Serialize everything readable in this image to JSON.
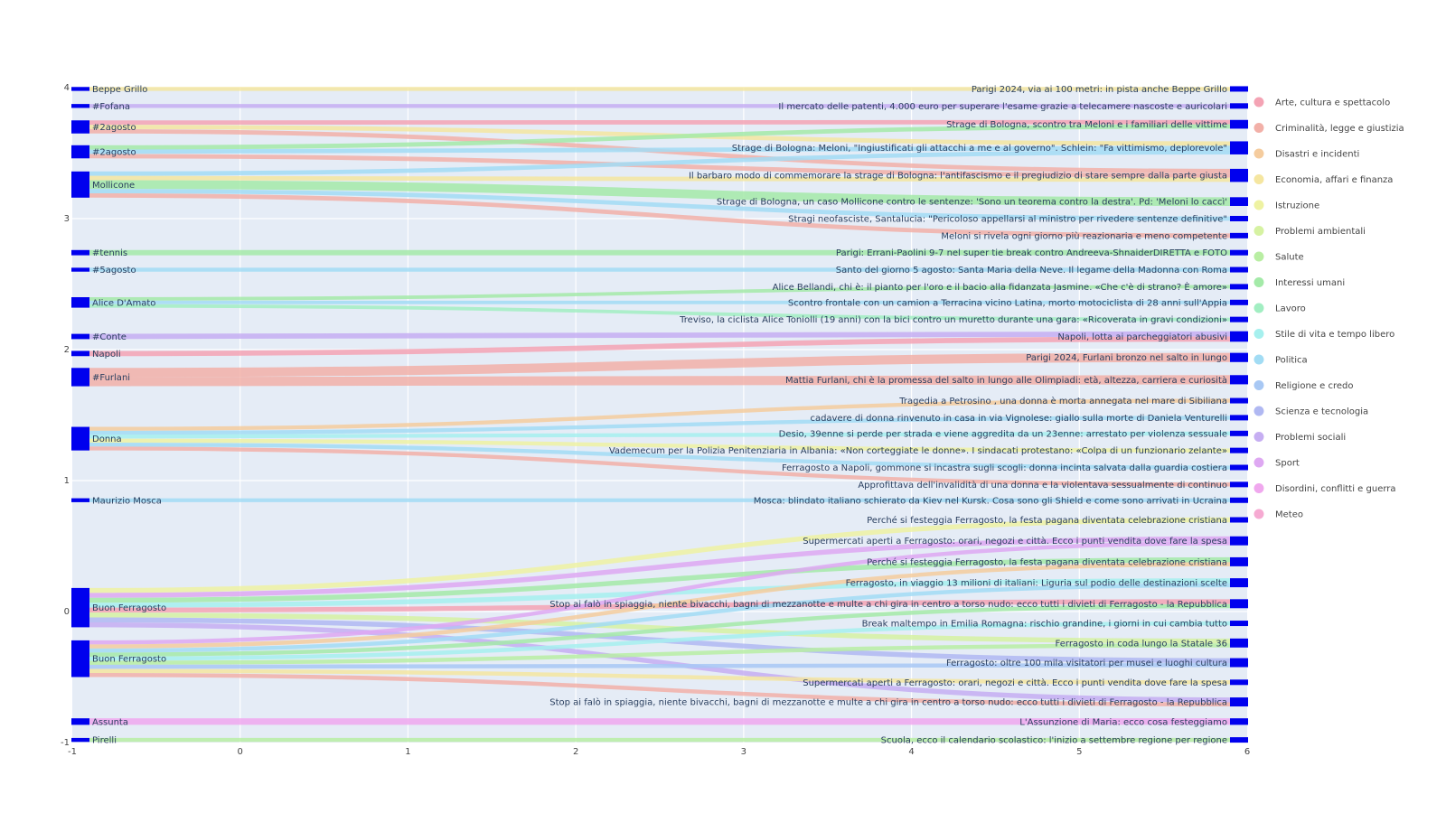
{
  "chart_data": {
    "type": "sankey",
    "xlim": [
      -1,
      6
    ],
    "ylim": [
      -1,
      4
    ],
    "x_ticks": [
      "-1",
      "0",
      "1",
      "2",
      "3",
      "4",
      "5",
      "6"
    ],
    "y_ticks": [
      "-1",
      "0",
      "1",
      "2",
      "3",
      "4"
    ],
    "grid": true,
    "legend_position": "right",
    "categories": [
      {
        "name": "Arte, cultura e spettacolo",
        "color": "#f4a3b4"
      },
      {
        "name": "Criminalità, legge e giustizia",
        "color": "#f2b0a8"
      },
      {
        "name": "Disastri e incidenti",
        "color": "#f5cc9e"
      },
      {
        "name": "Economia, affari e finanza",
        "color": "#f5e6a0"
      },
      {
        "name": "Istruzione",
        "color": "#eef2a2"
      },
      {
        "name": "Problemi ambientali",
        "color": "#d6f2a2"
      },
      {
        "name": "Salute",
        "color": "#b9eea3"
      },
      {
        "name": "Interessi umani",
        "color": "#a4eaa8"
      },
      {
        "name": "Lavoro",
        "color": "#a2eec2"
      },
      {
        "name": "Stile di vita e tempo libero",
        "color": "#a6f0ee"
      },
      {
        "name": "Politica",
        "color": "#a2dcf4"
      },
      {
        "name": "Religione e credo",
        "color": "#a8c8f4"
      },
      {
        "name": "Scienza e tecnologia",
        "color": "#b0b8f2"
      },
      {
        "name": "Problemi sociali",
        "color": "#c6aef2"
      },
      {
        "name": "Sport",
        "color": "#dea8f2"
      },
      {
        "name": "Disordini, conflitti e guerra",
        "color": "#f0a8ee"
      },
      {
        "name": "Meteo",
        "color": "#f6aad2"
      }
    ],
    "source_nodes": [
      {
        "label": "Beppe Grillo",
        "y": 3.99,
        "thick": 0.03
      },
      {
        "label": "#Fofana",
        "y": 3.86,
        "thick": 0.03
      },
      {
        "label": "#2agosto",
        "y": 3.7,
        "thick": 0.1
      },
      {
        "label": "#2agosto",
        "y": 3.51,
        "thick": 0.1
      },
      {
        "label": "Mollicone",
        "y": 3.26,
        "thick": 0.2
      },
      {
        "label": "#tennis",
        "y": 2.74,
        "thick": 0.04
      },
      {
        "label": "#5agosto",
        "y": 2.61,
        "thick": 0.03
      },
      {
        "label": "Alice D'Amato",
        "y": 2.36,
        "thick": 0.08
      },
      {
        "label": "#Conte",
        "y": 2.1,
        "thick": 0.04
      },
      {
        "label": "Napoli",
        "y": 1.97,
        "thick": 0.04
      },
      {
        "label": "#Furlani",
        "y": 1.79,
        "thick": 0.14
      },
      {
        "label": "Donna",
        "y": 1.32,
        "thick": 0.18
      },
      {
        "label": "Maurizio Mosca",
        "y": 0.85,
        "thick": 0.03
      },
      {
        "label": "Buon Ferragosto",
        "y": 0.03,
        "thick": 0.3
      },
      {
        "label": "Buon Ferragosto",
        "y": -0.36,
        "thick": 0.28
      },
      {
        "label": "Assunta",
        "y": -0.84,
        "thick": 0.05
      },
      {
        "label": "Pirelli",
        "y": -0.98,
        "thick": 0.03
      }
    ],
    "target_nodes": [
      {
        "label": "Parigi 2024, via ai 100 metri: in pista anche Beppe Grillo",
        "y": 3.99
      },
      {
        "label": "Il mercato delle patenti, 4.000 euro per superare l'esame grazie a telecamere nascoste e auricolari",
        "y": 3.86
      },
      {
        "label": "Strage di Bologna, scontro tra Meloni e i familiari delle vittime",
        "y": 3.72
      },
      {
        "label": "Strage di Bologna: Meloni, \"Ingiustificati gli attacchi a me e al governo\". Schlein: \"Fa vittimismo, deplorevole\"",
        "y": 3.54
      },
      {
        "label": "Il barbaro modo di commemorare la strage di Bologna: l'antifascismo e il pregiudizio di stare sempre dalla parte giusta",
        "y": 3.33
      },
      {
        "label": "Strage di Bologna, un caso Mollicone contro le sentenze: 'Sono un teorema contro la destra'. Pd: 'Meloni lo caccì'",
        "y": 3.13
      },
      {
        "label": "Stragi neofasciste, Santalucia: \"Pericoloso appellarsi al ministro per rivedere sentenze definitive\"",
        "y": 3.0
      },
      {
        "label": "Meloni si rivela ogni giorno più reazionaria e meno competente",
        "y": 2.87
      },
      {
        "label": "Parigi: Errani-Paolini 9-7 nel super tie break contro Andreeva-ShnaiderDIRETTA e FOTO",
        "y": 2.74
      },
      {
        "label": "Santo del giorno 5 agosto: Santa Maria della Neve. Il legame della Madonna con Roma",
        "y": 2.61
      },
      {
        "label": "Alice Bellandi, chi è: il pianto per l'oro e il bacio alla fidanzata Jasmine. «Che c'è di strano? È amore»",
        "y": 2.48
      },
      {
        "label": "Scontro frontale con un camion a Terracina vicino Latina, morto motociclista di 28 anni sull'Appia",
        "y": 2.36
      },
      {
        "label": "Treviso, la ciclista Alice Toniolli (19 anni) con la bici contro un muretto durante una gara: «Ricoverata in gravi condizioni»",
        "y": 2.23
      },
      {
        "label": "Napoli, lotta ai parcheggiatori abusivi",
        "y": 2.1
      },
      {
        "label": "Parigi 2024, Furlani bronzo nel salto in lungo",
        "y": 1.94
      },
      {
        "label": "Mattia Furlani, chi è la promessa del salto in lungo alle Olimpiadi: età, altezza, carriera e curiosità",
        "y": 1.77
      },
      {
        "label": "Tragedia a Petrosino , una donna è morta annegata nel mare di Sibiliana",
        "y": 1.61
      },
      {
        "label": "cadavere di donna rinvenuto in casa in via Vignolese: giallo sulla morte di Daniela Venturelli",
        "y": 1.48
      },
      {
        "label": "Desio, 39enne si perde per strada e viene aggredita da un 23enne: arrestato per violenza sessuale",
        "y": 1.36
      },
      {
        "label": "Vademecum per la Polizia Penitenziaria in Albania: «Non corteggiate le donne». I sindacati protestano: «Colpa di un funzionario zelante»",
        "y": 1.23
      },
      {
        "label": "Ferragosto a Napoli, gommone si incastra sugli scogli: donna incinta salvata dalla guardia costiera",
        "y": 1.1
      },
      {
        "label": "Approfittava dell'invalidità di una donna e la violentava sessualmente di continuo",
        "y": 0.97
      },
      {
        "label": "Mosca: blindato italiano schierato da Kiev nel Kursk. Cosa sono gli Shield e come sono arrivati in Ucraina",
        "y": 0.85
      },
      {
        "label": "Perché si festeggia Ferragosto, la festa pagana diventata celebrazione cristiana",
        "y": 0.7
      },
      {
        "label": "Supermercati aperti a Ferragosto: orari, negozi e città. Ecco i punti vendita dove fare la spesa",
        "y": 0.54
      },
      {
        "label": "Perché si festeggia Ferragosto, la festa pagana diventata celebrazione cristiana",
        "y": 0.38
      },
      {
        "label": "Ferragosto, in viaggio 13 milioni di italiani: Liguria sul podio delle destinazioni scelte",
        "y": 0.22
      },
      {
        "label": "Stop ai falò in spiaggia, niente bivacchi, bagni di mezzanotte e multe a chi gira in centro a torso nudo: ecco tutti i divieti di Ferragosto - la Repubblica",
        "y": 0.06
      },
      {
        "label": "Break maltempo in Emilia Romagna: rischio grandine, i giorni in cui cambia tutto",
        "y": -0.09
      },
      {
        "label": "Ferragosto in coda lungo la Statale 36",
        "y": -0.24
      },
      {
        "label": "Ferragosto: oltre 100 mila visitatori per musei e luoghi cultura",
        "y": -0.39
      },
      {
        "label": "Supermercati aperti a Ferragosto: orari, negozi e città. Ecco i punti vendita dove fare la spesa",
        "y": -0.54
      },
      {
        "label": "Stop ai falò in spiaggia, niente bivacchi, bagni di mezzanotte e multe a chi gira in centro a torso nudo: ecco tutti i divieti di Ferragosto - la Repubblica",
        "y": -0.69
      },
      {
        "label": "L'Assunzione di Maria: ecco cosa festeggiamo",
        "y": -0.84
      },
      {
        "label": "Scuola, ecco il calendario scolastico: l'inizio a settembre regione per regione",
        "y": -0.98
      }
    ],
    "links": [
      {
        "source": 0,
        "target": 0,
        "category": "Economia, affari e finanza",
        "value": 1
      },
      {
        "source": 1,
        "target": 1,
        "category": "Problemi sociali",
        "value": 1
      },
      {
        "source": 2,
        "target": 2,
        "category": "Arte, cultura e spettacolo",
        "value": 1
      },
      {
        "source": 2,
        "target": 3,
        "category": "Economia, affari e finanza",
        "value": 1
      },
      {
        "source": 2,
        "target": 4,
        "category": "Criminalità, legge e giustizia",
        "value": 1
      },
      {
        "source": 3,
        "target": 2,
        "category": "Interessi umani",
        "value": 1
      },
      {
        "source": 3,
        "target": 3,
        "category": "Politica",
        "value": 1
      },
      {
        "source": 3,
        "target": 4,
        "category": "Criminalità, legge e giustizia",
        "value": 1
      },
      {
        "source": 4,
        "target": 3,
        "category": "Politica",
        "value": 1
      },
      {
        "source": 4,
        "target": 4,
        "category": "Economia, affari e finanza",
        "value": 1
      },
      {
        "source": 4,
        "target": 5,
        "category": "Interessi umani",
        "value": 2
      },
      {
        "source": 4,
        "target": 6,
        "category": "Politica",
        "value": 1
      },
      {
        "source": 4,
        "target": 7,
        "category": "Criminalità, legge e giustizia",
        "value": 1
      },
      {
        "source": 5,
        "target": 8,
        "category": "Interessi umani",
        "value": 1
      },
      {
        "source": 6,
        "target": 9,
        "category": "Politica",
        "value": 1
      },
      {
        "source": 7,
        "target": 10,
        "category": "Interessi umani",
        "value": 1
      },
      {
        "source": 7,
        "target": 11,
        "category": "Politica",
        "value": 1
      },
      {
        "source": 7,
        "target": 12,
        "category": "Lavoro",
        "value": 1
      },
      {
        "source": 8,
        "target": 13,
        "category": "Problemi sociali",
        "value": 1
      },
      {
        "source": 9,
        "target": 13,
        "category": "Arte, cultura e spettacolo",
        "value": 1
      },
      {
        "source": 10,
        "target": 14,
        "category": "Criminalità, legge e giustizia",
        "value": 3
      },
      {
        "source": 10,
        "target": 15,
        "category": "Criminalità, legge e giustizia",
        "value": 3
      },
      {
        "source": 11,
        "target": 16,
        "category": "Disastri e incidenti",
        "value": 1
      },
      {
        "source": 11,
        "target": 17,
        "category": "Politica",
        "value": 1
      },
      {
        "source": 11,
        "target": 18,
        "category": "Stile di vita e tempo libero",
        "value": 1
      },
      {
        "source": 11,
        "target": 19,
        "category": "Istruzione",
        "value": 1
      },
      {
        "source": 11,
        "target": 20,
        "category": "Politica",
        "value": 1
      },
      {
        "source": 11,
        "target": 21,
        "category": "Criminalità, legge e giustizia",
        "value": 1
      },
      {
        "source": 12,
        "target": 22,
        "category": "Politica",
        "value": 1
      },
      {
        "source": 13,
        "target": 23,
        "category": "Istruzione",
        "value": 1
      },
      {
        "source": 13,
        "target": 24,
        "category": "Sport",
        "value": 1
      },
      {
        "source": 13,
        "target": 25,
        "category": "Interessi umani",
        "value": 1
      },
      {
        "source": 13,
        "target": 26,
        "category": "Stile di vita e tempo libero",
        "value": 1
      },
      {
        "source": 13,
        "target": 27,
        "category": "Arte, cultura e spettacolo",
        "value": 1
      },
      {
        "source": 13,
        "target": 29,
        "category": "Problemi ambientali",
        "value": 1
      },
      {
        "source": 13,
        "target": 30,
        "category": "Scienza e tecnologia",
        "value": 1
      },
      {
        "source": 13,
        "target": 32,
        "category": "Problemi sociali",
        "value": 1
      },
      {
        "source": 14,
        "target": 24,
        "category": "Sport",
        "value": 1
      },
      {
        "source": 14,
        "target": 25,
        "category": "Disastri e incidenti",
        "value": 1
      },
      {
        "source": 14,
        "target": 26,
        "category": "Politica",
        "value": 1
      },
      {
        "source": 14,
        "target": 27,
        "category": "Interessi umani",
        "value": 1
      },
      {
        "source": 14,
        "target": 28,
        "category": "Stile di vita e tempo libero",
        "value": 1
      },
      {
        "source": 14,
        "target": 29,
        "category": "Salute",
        "value": 1
      },
      {
        "source": 14,
        "target": 30,
        "category": "Religione e credo",
        "value": 1
      },
      {
        "source": 14,
        "target": 31,
        "category": "Economia, affari e finanza",
        "value": 1
      },
      {
        "source": 14,
        "target": 32,
        "category": "Criminalità, legge e giustizia",
        "value": 1
      },
      {
        "source": 15,
        "target": 33,
        "category": "Disordini, conflitti e guerra",
        "value": 1
      },
      {
        "source": 16,
        "target": 34,
        "category": "Salute",
        "value": 1
      }
    ]
  }
}
